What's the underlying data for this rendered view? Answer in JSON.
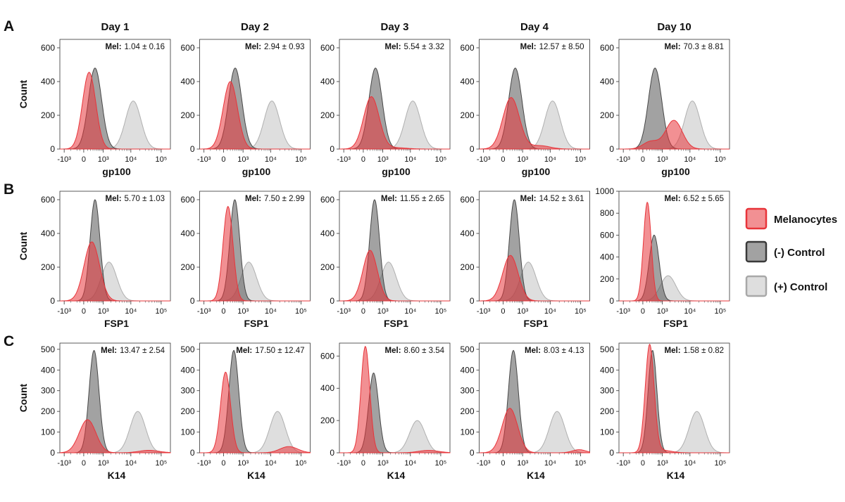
{
  "panel_letters": [
    "A",
    "B",
    "C"
  ],
  "day_labels": [
    "Day 1",
    "Day 2",
    "Day 3",
    "Day 4",
    "Day 10"
  ],
  "ylabel": "Count",
  "xtick_labels": [
    "-10³",
    "0",
    "10³",
    "10⁴",
    "10⁵"
  ],
  "colors": {
    "melanocytes": "#e8343a",
    "neg_control": "#555555",
    "pos_control": "#bdbdbd"
  },
  "legend": [
    {
      "label": "Melanocytes",
      "series": "melanocytes"
    },
    {
      "label": "(-) Control",
      "series": "neg_control"
    },
    {
      "label": "(+) Control",
      "series": "pos_control"
    }
  ],
  "chart_data": [
    {
      "type": "area",
      "panel": "A",
      "title": "Day 1",
      "xlabel": "gp100",
      "ylabel": "Count",
      "x_scale": "biexponential",
      "xlim": [
        -1500,
        200000
      ],
      "ylim": [
        0,
        650
      ],
      "yticks": [
        0,
        200,
        400,
        600
      ],
      "stat_label": "Mel:",
      "stat_value": "1.04 ± 0.16",
      "series": [
        {
          "name": "Melanocytes",
          "peaks": [
            {
              "center": 150,
              "height": 455,
              "width": 0.06
            }
          ]
        },
        {
          "name": "(-) Control",
          "peaks": [
            {
              "center": 400,
              "height": 480,
              "width": 0.06
            }
          ]
        },
        {
          "name": "(+) Control",
          "peaks": [
            {
              "center": 12000,
              "height": 285,
              "width": 0.07
            }
          ]
        }
      ]
    },
    {
      "type": "area",
      "panel": "A",
      "title": "Day 2",
      "xlabel": "gp100",
      "ylabel": "Count",
      "x_scale": "biexponential",
      "xlim": [
        -1500,
        200000
      ],
      "ylim": [
        0,
        650
      ],
      "yticks": [
        0,
        200,
        400,
        600
      ],
      "stat_label": "Mel:",
      "stat_value": "2.94 ± 0.93",
      "series": [
        {
          "name": "Melanocytes",
          "peaks": [
            {
              "center": 200,
              "height": 400,
              "width": 0.065
            }
          ]
        },
        {
          "name": "(-) Control",
          "peaks": [
            {
              "center": 420,
              "height": 480,
              "width": 0.06
            }
          ]
        },
        {
          "name": "(+) Control",
          "peaks": [
            {
              "center": 11000,
              "height": 285,
              "width": 0.07
            }
          ]
        }
      ]
    },
    {
      "type": "area",
      "panel": "A",
      "title": "Day 3",
      "xlabel": "gp100",
      "ylabel": "Count",
      "x_scale": "biexponential",
      "xlim": [
        -1500,
        200000
      ],
      "ylim": [
        0,
        650
      ],
      "yticks": [
        0,
        200,
        400,
        600
      ],
      "stat_label": "Mel:",
      "stat_value": "5.54 ± 3.32",
      "series": [
        {
          "name": "Melanocytes",
          "peaks": [
            {
              "center": 250,
              "height": 310,
              "width": 0.07
            },
            {
              "center": 3000,
              "height": 8,
              "width": 0.1
            }
          ]
        },
        {
          "name": "(-) Control",
          "peaks": [
            {
              "center": 450,
              "height": 480,
              "width": 0.06
            }
          ]
        },
        {
          "name": "(+) Control",
          "peaks": [
            {
              "center": 12000,
              "height": 285,
              "width": 0.07
            }
          ]
        }
      ]
    },
    {
      "type": "area",
      "panel": "A",
      "title": "Day 4",
      "xlabel": "gp100",
      "ylabel": "Count",
      "x_scale": "biexponential",
      "xlim": [
        -1500,
        200000
      ],
      "ylim": [
        0,
        650
      ],
      "yticks": [
        0,
        200,
        400,
        600
      ],
      "stat_label": "Mel:",
      "stat_value": "12.57 ± 8.50",
      "series": [
        {
          "name": "Melanocytes",
          "peaks": [
            {
              "center": 250,
              "height": 305,
              "width": 0.075
            },
            {
              "center": 4500,
              "height": 20,
              "width": 0.09
            }
          ]
        },
        {
          "name": "(-) Control",
          "peaks": [
            {
              "center": 450,
              "height": 480,
              "width": 0.06
            }
          ]
        },
        {
          "name": "(+) Control",
          "peaks": [
            {
              "center": 12000,
              "height": 285,
              "width": 0.07
            }
          ]
        }
      ]
    },
    {
      "type": "area",
      "panel": "A",
      "title": "Day 10",
      "xlabel": "gp100",
      "ylabel": "Count",
      "x_scale": "biexponential",
      "xlim": [
        -1500,
        200000
      ],
      "ylim": [
        0,
        650
      ],
      "yticks": [
        0,
        200,
        400,
        600
      ],
      "stat_label": "Mel:",
      "stat_value": "70.3 ± 8.81",
      "series": [
        {
          "name": "Melanocytes",
          "peaks": [
            {
              "center": 250,
              "height": 45,
              "width": 0.07
            },
            {
              "center": 2800,
              "height": 170,
              "width": 0.075
            }
          ]
        },
        {
          "name": "(-) Control",
          "peaks": [
            {
              "center": 450,
              "height": 480,
              "width": 0.06
            }
          ]
        },
        {
          "name": "(+) Control",
          "peaks": [
            {
              "center": 12000,
              "height": 285,
              "width": 0.07
            }
          ]
        }
      ]
    },
    {
      "type": "area",
      "panel": "B",
      "title": "Day 1",
      "xlabel": "FSP1",
      "ylabel": "Count",
      "x_scale": "biexponential",
      "xlim": [
        -1500,
        200000
      ],
      "ylim": [
        0,
        650
      ],
      "yticks": [
        0,
        200,
        400,
        600
      ],
      "stat_label": "Mel:",
      "stat_value": "5.70 ± 1.03",
      "series": [
        {
          "name": "Melanocytes",
          "peaks": [
            {
              "center": 250,
              "height": 350,
              "width": 0.07
            }
          ]
        },
        {
          "name": "(-) Control",
          "peaks": [
            {
              "center": 400,
              "height": 600,
              "width": 0.045
            }
          ]
        },
        {
          "name": "(+) Control",
          "peaks": [
            {
              "center": 1700,
              "height": 230,
              "width": 0.07
            }
          ]
        }
      ]
    },
    {
      "type": "area",
      "panel": "B",
      "title": "Day 2",
      "xlabel": "FSP1",
      "ylabel": "Count",
      "x_scale": "biexponential",
      "xlim": [
        -1500,
        200000
      ],
      "ylim": [
        0,
        650
      ],
      "yticks": [
        0,
        200,
        400,
        600
      ],
      "stat_label": "Mel:",
      "stat_value": "7.50 ± 2.99",
      "series": [
        {
          "name": "Melanocytes",
          "peaks": [
            {
              "center": 120,
              "height": 560,
              "width": 0.045
            }
          ]
        },
        {
          "name": "(-) Control",
          "peaks": [
            {
              "center": 400,
              "height": 600,
              "width": 0.045
            }
          ]
        },
        {
          "name": "(+) Control",
          "peaks": [
            {
              "center": 1700,
              "height": 230,
              "width": 0.07
            }
          ]
        }
      ]
    },
    {
      "type": "area",
      "panel": "B",
      "title": "Day 3",
      "xlabel": "FSP1",
      "ylabel": "Count",
      "x_scale": "biexponential",
      "xlim": [
        -1500,
        200000
      ],
      "ylim": [
        0,
        650
      ],
      "yticks": [
        0,
        200,
        400,
        600
      ],
      "stat_label": "Mel:",
      "stat_value": "11.55 ± 2.65",
      "series": [
        {
          "name": "Melanocytes",
          "peaks": [
            {
              "center": 200,
              "height": 300,
              "width": 0.065
            }
          ]
        },
        {
          "name": "(-) Control",
          "peaks": [
            {
              "center": 400,
              "height": 600,
              "width": 0.045
            }
          ]
        },
        {
          "name": "(+) Control",
          "peaks": [
            {
              "center": 1700,
              "height": 230,
              "width": 0.07
            }
          ]
        }
      ]
    },
    {
      "type": "area",
      "panel": "B",
      "title": "Day 4",
      "xlabel": "FSP1",
      "ylabel": "Count",
      "x_scale": "biexponential",
      "xlim": [
        -1500,
        200000
      ],
      "ylim": [
        0,
        650
      ],
      "yticks": [
        0,
        200,
        400,
        600
      ],
      "stat_label": "Mel:",
      "stat_value": "14.52 ± 3.61",
      "series": [
        {
          "name": "Melanocytes",
          "peaks": [
            {
              "center": 220,
              "height": 270,
              "width": 0.07
            }
          ]
        },
        {
          "name": "(-) Control",
          "peaks": [
            {
              "center": 400,
              "height": 600,
              "width": 0.045
            }
          ]
        },
        {
          "name": "(+) Control",
          "peaks": [
            {
              "center": 1700,
              "height": 230,
              "width": 0.07
            }
          ]
        }
      ]
    },
    {
      "type": "area",
      "panel": "B",
      "title": "Day 10",
      "xlabel": "FSP1",
      "ylabel": "Count",
      "x_scale": "biexponential",
      "xlim": [
        -1500,
        200000
      ],
      "ylim": [
        0,
        1000
      ],
      "yticks": [
        0,
        200,
        400,
        600,
        800,
        1000
      ],
      "stat_label": "Mel:",
      "stat_value": "6.52 ± 5.65",
      "series": [
        {
          "name": "Melanocytes",
          "peaks": [
            {
              "center": 120,
              "height": 900,
              "width": 0.035
            }
          ]
        },
        {
          "name": "(-) Control",
          "peaks": [
            {
              "center": 400,
              "height": 600,
              "width": 0.045
            }
          ]
        },
        {
          "name": "(+) Control",
          "peaks": [
            {
              "center": 1700,
              "height": 230,
              "width": 0.07
            }
          ]
        }
      ]
    },
    {
      "type": "area",
      "panel": "C",
      "title": "Day 1",
      "xlabel": "K14",
      "ylabel": "Count",
      "x_scale": "biexponential",
      "xlim": [
        -1500,
        200000
      ],
      "ylim": [
        0,
        530
      ],
      "yticks": [
        0,
        100,
        200,
        300,
        400,
        500
      ],
      "stat_label": "Mel:",
      "stat_value": "13.47 ± 2.54",
      "series": [
        {
          "name": "Melanocytes",
          "peaks": [
            {
              "center": 100,
              "height": 160,
              "width": 0.075
            },
            {
              "center": 40000,
              "height": 12,
              "width": 0.09
            }
          ]
        },
        {
          "name": "(-) Control",
          "peaks": [
            {
              "center": 350,
              "height": 495,
              "width": 0.045
            }
          ]
        },
        {
          "name": "(+) Control",
          "peaks": [
            {
              "center": 17000,
              "height": 200,
              "width": 0.07
            }
          ]
        }
      ]
    },
    {
      "type": "area",
      "panel": "C",
      "title": "Day 2",
      "xlabel": "K14",
      "ylabel": "Count",
      "x_scale": "biexponential",
      "xlim": [
        -1500,
        200000
      ],
      "ylim": [
        0,
        530
      ],
      "yticks": [
        0,
        100,
        200,
        300,
        400,
        500
      ],
      "stat_label": "Mel:",
      "stat_value": "17.50 ± 12.47",
      "series": [
        {
          "name": "Melanocytes",
          "peaks": [
            {
              "center": 50,
              "height": 390,
              "width": 0.045
            },
            {
              "center": 40000,
              "height": 30,
              "width": 0.08
            }
          ]
        },
        {
          "name": "(-) Control",
          "peaks": [
            {
              "center": 350,
              "height": 495,
              "width": 0.045
            }
          ]
        },
        {
          "name": "(+) Control",
          "peaks": [
            {
              "center": 17000,
              "height": 200,
              "width": 0.07
            }
          ]
        }
      ]
    },
    {
      "type": "area",
      "panel": "C",
      "title": "Day 3",
      "xlabel": "K14",
      "ylabel": "Count",
      "x_scale": "biexponential",
      "xlim": [
        -1500,
        200000
      ],
      "ylim": [
        0,
        680
      ],
      "yticks": [
        0,
        200,
        400,
        600
      ],
      "stat_label": "Mel:",
      "stat_value": "8.60 ± 3.54",
      "series": [
        {
          "name": "Melanocytes",
          "peaks": [
            {
              "center": 50,
              "height": 660,
              "width": 0.04
            },
            {
              "center": 40000,
              "height": 15,
              "width": 0.09
            }
          ]
        },
        {
          "name": "(-) Control",
          "peaks": [
            {
              "center": 350,
              "height": 495,
              "width": 0.045
            }
          ]
        },
        {
          "name": "(+) Control",
          "peaks": [
            {
              "center": 17000,
              "height": 200,
              "width": 0.07
            }
          ]
        }
      ]
    },
    {
      "type": "area",
      "panel": "C",
      "title": "Day 4",
      "xlabel": "K14",
      "ylabel": "Count",
      "x_scale": "biexponential",
      "xlim": [
        -1500,
        200000
      ],
      "ylim": [
        0,
        530
      ],
      "yticks": [
        0,
        100,
        200,
        300,
        400,
        500
      ],
      "stat_label": "Mel:",
      "stat_value": "8.03 ± 4.13",
      "series": [
        {
          "name": "Melanocytes",
          "peaks": [
            {
              "center": 200,
              "height": 215,
              "width": 0.07
            },
            {
              "center": 90000,
              "height": 15,
              "width": 0.06
            }
          ]
        },
        {
          "name": "(-) Control",
          "peaks": [
            {
              "center": 350,
              "height": 495,
              "width": 0.045
            }
          ]
        },
        {
          "name": "(+) Control",
          "peaks": [
            {
              "center": 17000,
              "height": 200,
              "width": 0.07
            }
          ]
        }
      ]
    },
    {
      "type": "area",
      "panel": "C",
      "title": "Day 10",
      "xlabel": "K14",
      "ylabel": "Count",
      "x_scale": "biexponential",
      "xlim": [
        -1500,
        200000
      ],
      "ylim": [
        0,
        530
      ],
      "yticks": [
        0,
        100,
        200,
        300,
        400,
        500
      ],
      "stat_label": "Mel:",
      "stat_value": "1.58 ± 0.82",
      "series": [
        {
          "name": "Melanocytes",
          "peaks": [
            {
              "center": 200,
              "height": 520,
              "width": 0.04
            },
            {
              "center": 1000,
              "height": 12,
              "width": 0.08
            }
          ]
        },
        {
          "name": "(-) Control",
          "peaks": [
            {
              "center": 320,
              "height": 495,
              "width": 0.04
            }
          ]
        },
        {
          "name": "(+) Control",
          "peaks": [
            {
              "center": 17000,
              "height": 200,
              "width": 0.07
            }
          ]
        }
      ]
    }
  ]
}
